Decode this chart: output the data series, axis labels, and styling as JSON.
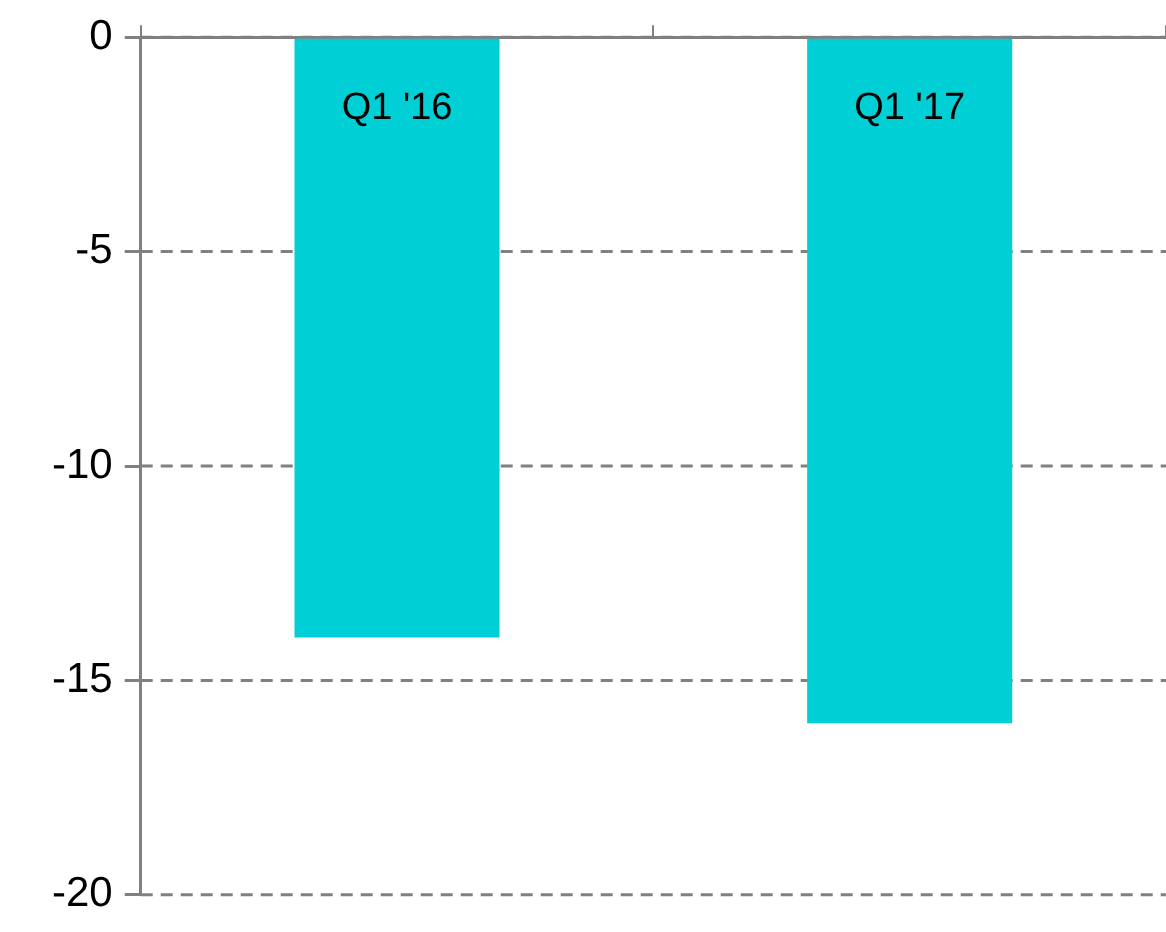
{
  "chart_data": {
    "type": "bar",
    "categories": [
      "Q1 '16",
      "Q1 '17"
    ],
    "values": [
      -14,
      -16
    ],
    "color": "#00d0d5",
    "ylim": [
      -20,
      0
    ],
    "yticks": [
      0,
      -5,
      -10,
      -15,
      -20
    ],
    "grid": "y",
    "line_style": "dashed"
  }
}
